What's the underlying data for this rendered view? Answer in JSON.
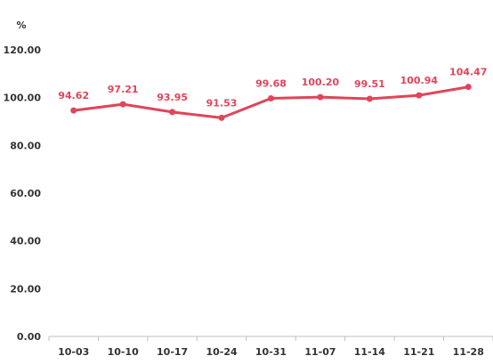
{
  "chart_data": {
    "type": "line",
    "unit_label": "%",
    "categories": [
      "10-03",
      "10-10",
      "10-17",
      "10-24",
      "10-31",
      "11-07",
      "11-14",
      "11-21",
      "11-28"
    ],
    "values": [
      94.62,
      97.21,
      93.95,
      91.53,
      99.68,
      100.2,
      99.51,
      100.94,
      104.47
    ],
    "value_labels": [
      "94.62",
      "97.21",
      "93.95",
      "91.53",
      "99.68",
      "100.20",
      "99.51",
      "100.94",
      "104.47"
    ],
    "y_ticks": [
      "0.00",
      "20.00",
      "40.00",
      "60.00",
      "80.00",
      "100.00",
      "120.00"
    ],
    "ylim": [
      0,
      120
    ],
    "grid": false,
    "legend": "none",
    "series_color": "#e0455a",
    "axis_color": "#bfbfbf"
  }
}
